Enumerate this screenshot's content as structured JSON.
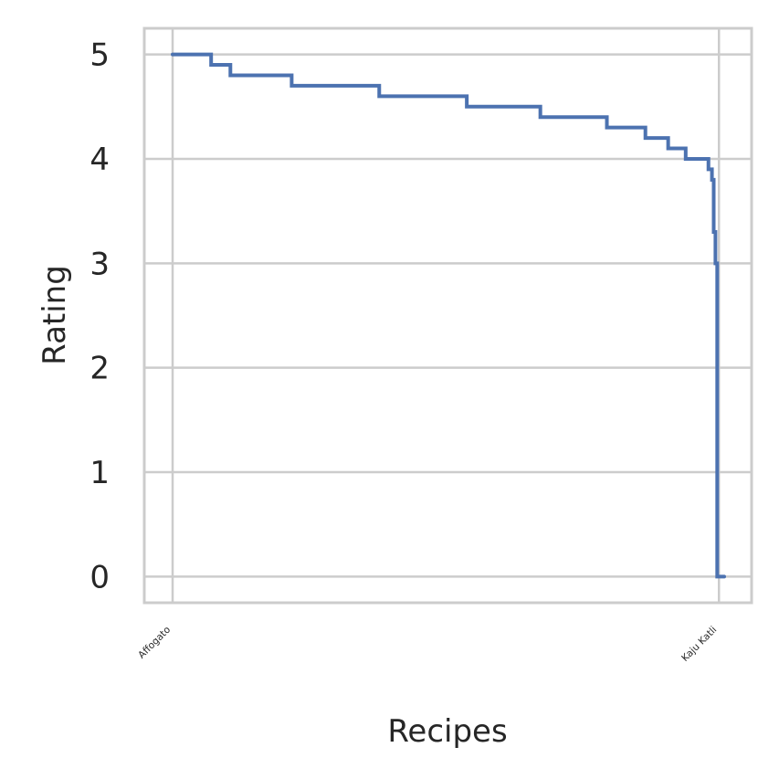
{
  "chart_data": {
    "type": "line",
    "title": "",
    "xlabel": "Recipes",
    "ylabel": "Rating",
    "grid": true,
    "x_ticks": [
      "Affogato",
      "Kaju Katli"
    ],
    "y_ticks": [
      "0",
      "1",
      "2",
      "3",
      "4",
      "5"
    ],
    "ylim": [
      -0.25,
      5.25
    ],
    "x_index_range": [
      0,
      315
    ],
    "series": [
      {
        "color": "#4c72b0",
        "step_levels": [
          {
            "x_start": 0,
            "x_end": 22,
            "y": 5.0
          },
          {
            "x_start": 22,
            "x_end": 33,
            "y": 4.9
          },
          {
            "x_start": 33,
            "x_end": 68,
            "y": 4.8
          },
          {
            "x_start": 68,
            "x_end": 118,
            "y": 4.7
          },
          {
            "x_start": 118,
            "x_end": 168,
            "y": 4.6
          },
          {
            "x_start": 168,
            "x_end": 210,
            "y": 4.5
          },
          {
            "x_start": 210,
            "x_end": 248,
            "y": 4.4
          },
          {
            "x_start": 248,
            "x_end": 270,
            "y": 4.3
          },
          {
            "x_start": 270,
            "x_end": 283,
            "y": 4.2
          },
          {
            "x_start": 283,
            "x_end": 293,
            "y": 4.1
          },
          {
            "x_start": 293,
            "x_end": 306,
            "y": 4.0
          },
          {
            "x_start": 306,
            "x_end": 308,
            "y": 3.9
          },
          {
            "x_start": 308,
            "x_end": 309,
            "y": 3.8
          },
          {
            "x_start": 309,
            "x_end": 310,
            "y": 3.3
          },
          {
            "x_start": 310,
            "x_end": 311,
            "y": 3.0
          },
          {
            "x_start": 311,
            "x_end": 315,
            "y": 0.0
          }
        ]
      }
    ]
  }
}
